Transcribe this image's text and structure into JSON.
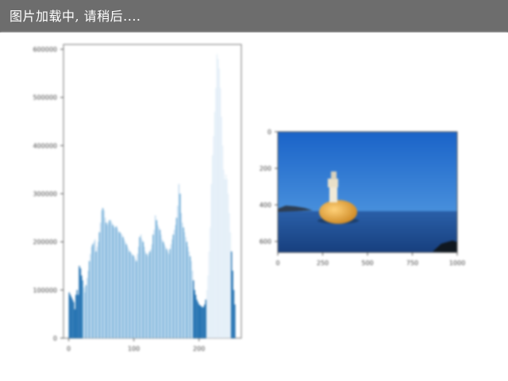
{
  "loading_text": "图片加载中, 请稍后....",
  "chart_data": [
    {
      "type": "bar",
      "title": "",
      "xlabel": "",
      "ylabel": "",
      "x_ticks": [
        0,
        100,
        200
      ],
      "xlim": [
        -8,
        265
      ],
      "y_ticks": [
        0,
        100000,
        200000,
        300000,
        400000,
        500000,
        600000
      ],
      "ylim": [
        0,
        610000
      ],
      "colors": {
        "dark": "#1f6fb0",
        "mid": "#5aa0d0",
        "light": "#bcd8ee",
        "pale": "#e4eff8"
      },
      "series": [
        {
          "name": "",
          "values": [
            95000,
            90000,
            85000,
            80000,
            75000,
            60000,
            90000,
            100000,
            90000,
            150000,
            145000,
            130000,
            120000,
            105000,
            95000,
            110000,
            125000,
            140000,
            160000,
            175000,
            190000,
            195000,
            200000,
            205000,
            180000,
            190000,
            200000,
            220000,
            240000,
            265000,
            270000,
            265000,
            250000,
            240000,
            235000,
            240000,
            245000,
            245000,
            240000,
            235000,
            230000,
            230000,
            232000,
            228000,
            222000,
            220000,
            218000,
            215000,
            210000,
            205000,
            200000,
            195000,
            190000,
            185000,
            180000,
            178000,
            175000,
            172000,
            170000,
            165000,
            160000,
            175000,
            190000,
            210000,
            215000,
            205000,
            200000,
            190000,
            180000,
            175000,
            170000,
            175000,
            180000,
            185000,
            195000,
            215000,
            225000,
            255000,
            245000,
            235000,
            230000,
            225000,
            215000,
            205000,
            200000,
            195000,
            190000,
            185000,
            180000,
            175000,
            185000,
            195000,
            205000,
            215000,
            225000,
            235000,
            250000,
            275000,
            320000,
            300000,
            260000,
            240000,
            230000,
            220000,
            210000,
            200000,
            190000,
            180000,
            170000,
            160000,
            140000,
            120000,
            100000,
            90000,
            80000,
            75000,
            70000,
            68000,
            66000,
            64000,
            65000,
            70000,
            80000,
            100000,
            130000,
            180000,
            230000,
            320000,
            380000,
            420000,
            470000,
            520000,
            590000,
            580000,
            560000,
            520000,
            460000,
            400000,
            350000,
            330000,
            340000,
            330000,
            300000,
            260000,
            220000,
            180000,
            140000,
            100000,
            70000
          ]
        }
      ]
    },
    {
      "type": "image",
      "title": "",
      "x_ticks": [
        0,
        250,
        500,
        750,
        1000
      ],
      "xlim": [
        0,
        1000
      ],
      "y_ticks": [
        0,
        200,
        400,
        600
      ],
      "ylim": [
        0,
        660
      ],
      "scene": {
        "sky": "#1f6fd0",
        "sea": "#1e4d96",
        "buoy": "#e8a230",
        "tower": "#f1ead8"
      }
    }
  ]
}
